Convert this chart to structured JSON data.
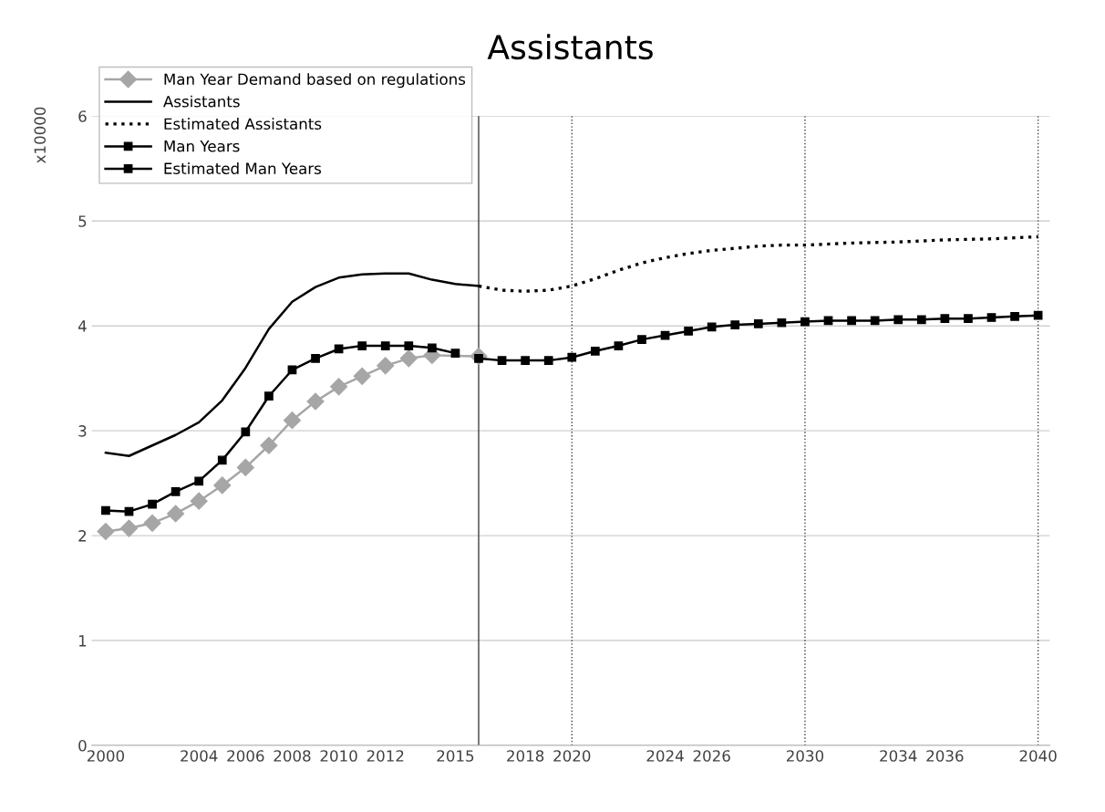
{
  "chart_data": {
    "type": "line",
    "title": "Assistants",
    "ylabel": "x10000",
    "xlim": [
      1999.4,
      2040.5
    ],
    "xticks": [
      2000,
      2004,
      2006,
      2008,
      2010,
      2012,
      2015,
      2018,
      2020,
      2024,
      2026,
      2030,
      2034,
      2036,
      2040
    ],
    "ylim": [
      0,
      6
    ],
    "yticks": [
      0,
      1,
      2,
      3,
      4,
      5,
      6
    ],
    "grid": "y",
    "legend": "top left",
    "ref_lines": [
      {
        "axis": "x",
        "value": 2016,
        "color": "#404040",
        "line_style": "solid"
      },
      {
        "axis": "x",
        "value": 2020,
        "color": "#404040",
        "line_style": "dotted"
      },
      {
        "axis": "x",
        "value": 2030,
        "color": "#404040",
        "line_style": "dotted"
      },
      {
        "axis": "x",
        "value": 2040,
        "color": "#404040",
        "line_style": "dotted"
      }
    ],
    "series": [
      {
        "name": "Man Year Demand based on regulations",
        "color": "#a6a6a6",
        "marker": "diamond",
        "line_style": "solid",
        "x": [
          2000,
          2001,
          2002,
          2003,
          2004,
          2005,
          2006,
          2007,
          2008,
          2009,
          2010,
          2011,
          2012,
          2013,
          2014,
          2016
        ],
        "values": [
          2.04,
          2.07,
          2.12,
          2.21,
          2.33,
          2.48,
          2.65,
          2.86,
          3.1,
          3.28,
          3.42,
          3.52,
          3.62,
          3.69,
          3.72,
          3.71
        ]
      },
      {
        "name": "Assistants",
        "color": "#000000",
        "marker": "none",
        "line_style": "solid",
        "x": [
          2000,
          2001,
          2002,
          2003,
          2004,
          2005,
          2006,
          2007,
          2008,
          2009,
          2010,
          2011,
          2012,
          2013,
          2014,
          2015,
          2016
        ],
        "values": [
          2.79,
          2.76,
          2.86,
          2.96,
          3.08,
          3.29,
          3.6,
          3.97,
          4.23,
          4.37,
          4.46,
          4.49,
          4.5,
          4.5,
          4.44,
          4.4,
          4.38
        ]
      },
      {
        "name": "Estimated Assistants",
        "color": "#000000",
        "marker": "none",
        "line_style": "dotted",
        "x": [
          2016,
          2017,
          2018,
          2019,
          2020,
          2021,
          2022,
          2023,
          2024,
          2025,
          2026,
          2027,
          2028,
          2029,
          2030,
          2032,
          2034,
          2036,
          2038,
          2040
        ],
        "values": [
          4.38,
          4.34,
          4.33,
          4.34,
          4.38,
          4.45,
          4.53,
          4.6,
          4.65,
          4.69,
          4.72,
          4.74,
          4.76,
          4.77,
          4.77,
          4.79,
          4.8,
          4.82,
          4.83,
          4.85
        ]
      },
      {
        "name": "Man Years",
        "color": "#000000",
        "marker": "square",
        "line_style": "solid",
        "x": [
          2000,
          2001,
          2002,
          2003,
          2004,
          2005,
          2006,
          2007,
          2008,
          2009,
          2010,
          2011,
          2012,
          2013,
          2014,
          2015
        ],
        "values": [
          2.24,
          2.23,
          2.3,
          2.42,
          2.52,
          2.72,
          2.99,
          3.33,
          3.58,
          3.69,
          3.78,
          3.81,
          3.81,
          3.81,
          3.79,
          3.74
        ]
      },
      {
        "name": "Estimated Man Years",
        "color": "#000000",
        "marker": "square",
        "line_style": "solid",
        "x": [
          2016,
          2017,
          2018,
          2019,
          2020,
          2021,
          2022,
          2023,
          2024,
          2025,
          2026,
          2027,
          2028,
          2029,
          2030,
          2031,
          2032,
          2033,
          2034,
          2035,
          2036,
          2037,
          2038,
          2039,
          2040
        ],
        "values": [
          3.69,
          3.67,
          3.67,
          3.67,
          3.7,
          3.76,
          3.81,
          3.87,
          3.91,
          3.95,
          3.99,
          4.01,
          4.02,
          4.03,
          4.04,
          4.05,
          4.05,
          4.05,
          4.06,
          4.06,
          4.07,
          4.07,
          4.08,
          4.09,
          4.1
        ]
      }
    ]
  }
}
